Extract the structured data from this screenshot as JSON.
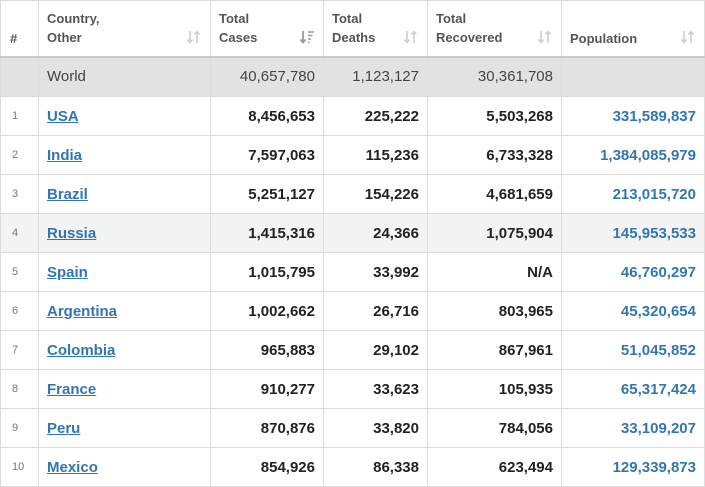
{
  "headers": {
    "num": "#",
    "country_line1": "Country,",
    "country_line2": "Other",
    "cases_line1": "Total",
    "cases_line2": "Cases",
    "deaths_line1": "Total",
    "deaths_line2": "Deaths",
    "recovered_line1": "Total",
    "recovered_line2": "Recovered",
    "population": "Population"
  },
  "world": {
    "name": "World",
    "total_cases": "40,657,780",
    "total_deaths": "1,123,127",
    "total_recovered": "30,361,708",
    "population": ""
  },
  "rows": [
    {
      "rank": "1",
      "country": "USA",
      "total_cases": "8,456,653",
      "total_deaths": "225,222",
      "total_recovered": "5,503,268",
      "population": "331,589,837"
    },
    {
      "rank": "2",
      "country": "India",
      "total_cases": "7,597,063",
      "total_deaths": "115,236",
      "total_recovered": "6,733,328",
      "population": "1,384,085,979"
    },
    {
      "rank": "3",
      "country": "Brazil",
      "total_cases": "5,251,127",
      "total_deaths": "154,226",
      "total_recovered": "4,681,659",
      "population": "213,015,720"
    },
    {
      "rank": "4",
      "country": "Russia",
      "total_cases": "1,415,316",
      "total_deaths": "24,366",
      "total_recovered": "1,075,904",
      "population": "145,953,533"
    },
    {
      "rank": "5",
      "country": "Spain",
      "total_cases": "1,015,795",
      "total_deaths": "33,992",
      "total_recovered": "N/A",
      "population": "46,760,297"
    },
    {
      "rank": "6",
      "country": "Argentina",
      "total_cases": "1,002,662",
      "total_deaths": "26,716",
      "total_recovered": "803,965",
      "population": "45,320,654"
    },
    {
      "rank": "7",
      "country": "Colombia",
      "total_cases": "965,883",
      "total_deaths": "29,102",
      "total_recovered": "867,961",
      "population": "51,045,852"
    },
    {
      "rank": "8",
      "country": "France",
      "total_cases": "910,277",
      "total_deaths": "33,623",
      "total_recovered": "105,935",
      "population": "65,317,424"
    },
    {
      "rank": "9",
      "country": "Peru",
      "total_cases": "870,876",
      "total_deaths": "33,820",
      "total_recovered": "784,056",
      "population": "33,109,207"
    },
    {
      "rank": "10",
      "country": "Mexico",
      "total_cases": "854,926",
      "total_deaths": "86,338",
      "total_recovered": "623,494",
      "population": "129,339,873"
    }
  ],
  "highlighted_row_rank": "4",
  "colors": {
    "link": "#3276b1",
    "world_row_bg": "#e2e2e2",
    "highlight_row_bg": "#f3f3f3",
    "border": "#dcdcdc"
  },
  "icons": {
    "sort_default": "sort-arrows-icon",
    "sort_active": "sort-descending-icon"
  }
}
